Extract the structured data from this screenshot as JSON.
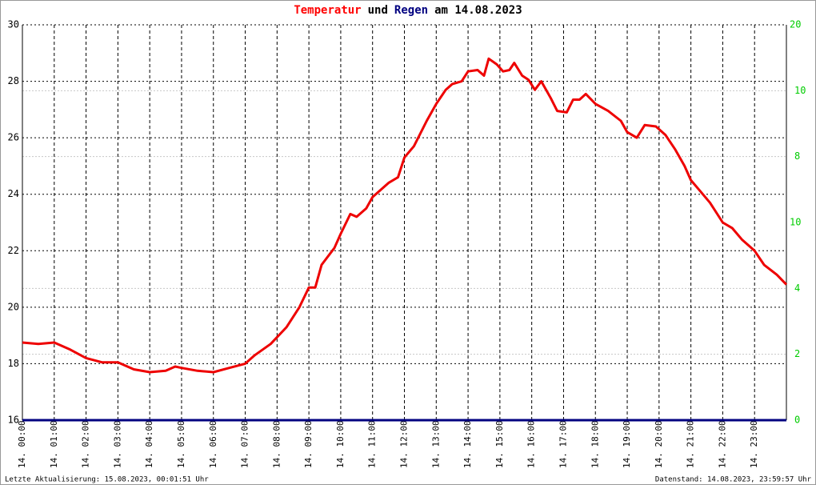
{
  "chart_data": {
    "type": "line",
    "title_parts": [
      {
        "text": "Temperatur",
        "color": "#ff0000"
      },
      {
        "text": "und",
        "color": "#000000"
      },
      {
        "text": "Regen",
        "color": "#000080"
      },
      {
        "text": "am 14.08.2023",
        "color": "#000000"
      }
    ],
    "footer_left": "Letzte Aktualisierung: 15.08.2023, 00:01:51 Uhr",
    "footer_right": "Datenstand: 14.08.2023, 23:59:57 Uhr",
    "xlim": [
      0,
      24
    ],
    "xticks": [
      {
        "value": 0,
        "label": "14. 00:00"
      },
      {
        "value": 1,
        "label": "14. 01:00"
      },
      {
        "value": 2,
        "label": "14. 02:00"
      },
      {
        "value": 3,
        "label": "14. 03:00"
      },
      {
        "value": 4,
        "label": "14. 04:00"
      },
      {
        "value": 5,
        "label": "14. 05:00"
      },
      {
        "value": 6,
        "label": "14. 06:00"
      },
      {
        "value": 7,
        "label": "14. 07:00"
      },
      {
        "value": 8,
        "label": "14. 08:00"
      },
      {
        "value": 9,
        "label": "14. 09:00"
      },
      {
        "value": 10,
        "label": "14. 10:00"
      },
      {
        "value": 11,
        "label": "14. 11:00"
      },
      {
        "value": 12,
        "label": "14. 12:00"
      },
      {
        "value": 13,
        "label": "14. 13:00"
      },
      {
        "value": 14,
        "label": "14. 14:00"
      },
      {
        "value": 15,
        "label": "14. 15:00"
      },
      {
        "value": 16,
        "label": "14. 16:00"
      },
      {
        "value": 17,
        "label": "14. 17:00"
      },
      {
        "value": 18,
        "label": "14. 18:00"
      },
      {
        "value": 19,
        "label": "14. 19:00"
      },
      {
        "value": 20,
        "label": "14. 20:00"
      },
      {
        "value": 21,
        "label": "14. 21:00"
      },
      {
        "value": 22,
        "label": "14. 22:00"
      },
      {
        "value": 23,
        "label": "14. 23:00"
      }
    ],
    "ylim": [
      16,
      30
    ],
    "yticks": [
      16,
      18,
      20,
      22,
      24,
      26,
      28,
      30
    ],
    "y2lim": [
      0,
      12
    ],
    "y2ticks": [
      0,
      2,
      4,
      8,
      10
    ],
    "y3lim": [
      0,
      20
    ],
    "y3ticks": [
      10,
      20
    ],
    "grid": true,
    "series": [
      {
        "name": "Temperatur",
        "color": "#ee0000",
        "axis": "y",
        "x": [
          0,
          0.5,
          1.0,
          1.5,
          2.0,
          2.5,
          3.0,
          3.5,
          4.0,
          4.5,
          4.8,
          5.0,
          5.5,
          6.0,
          6.5,
          7.0,
          7.3,
          7.8,
          8.3,
          8.7,
          9.0,
          9.2,
          9.4,
          9.8,
          10.0,
          10.3,
          10.5,
          10.8,
          11.0,
          11.5,
          11.8,
          12.0,
          12.3,
          12.7,
          13.0,
          13.3,
          13.5,
          13.8,
          14.0,
          14.3,
          14.5,
          14.65,
          14.9,
          15.1,
          15.3,
          15.45,
          15.7,
          15.9,
          16.1,
          16.3,
          16.6,
          16.8,
          17.1,
          17.3,
          17.5,
          17.7,
          18.0,
          18.4,
          18.8,
          19.0,
          19.3,
          19.55,
          19.9,
          20.2,
          20.5,
          20.8,
          21.0,
          21.3,
          21.6,
          22.0,
          22.3,
          22.6,
          23.0,
          23.3,
          23.7,
          24.0
        ],
        "values": [
          18.75,
          18.7,
          18.75,
          18.5,
          18.2,
          18.05,
          18.05,
          17.8,
          17.7,
          17.75,
          17.9,
          17.85,
          17.75,
          17.7,
          17.85,
          18.0,
          18.3,
          18.7,
          19.3,
          20.0,
          20.7,
          20.7,
          21.5,
          22.1,
          22.6,
          23.3,
          23.2,
          23.5,
          23.9,
          24.4,
          24.6,
          25.3,
          25.7,
          26.6,
          27.2,
          27.7,
          27.9,
          28.0,
          28.35,
          28.4,
          28.2,
          28.8,
          28.6,
          28.35,
          28.4,
          28.65,
          28.2,
          28.05,
          27.7,
          28.0,
          27.4,
          26.95,
          26.9,
          27.35,
          27.35,
          27.55,
          27.2,
          26.95,
          26.6,
          26.2,
          26.0,
          26.45,
          26.4,
          26.1,
          25.6,
          25.0,
          24.5,
          24.1,
          23.7,
          23.0,
          22.8,
          22.4,
          22.0,
          21.5,
          21.15,
          20.8
        ]
      },
      {
        "name": "Regen",
        "color": "#000080",
        "axis": "y2",
        "x": [
          0,
          24
        ],
        "values": [
          0,
          0
        ]
      }
    ]
  }
}
